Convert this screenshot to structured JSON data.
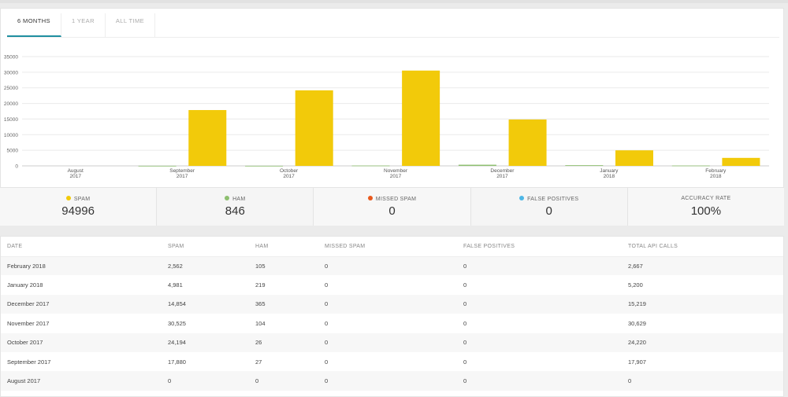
{
  "tabs": [
    {
      "label": "6 MONTHS",
      "active": true
    },
    {
      "label": "1 YEAR",
      "active": false
    },
    {
      "label": "ALL TIME",
      "active": false
    }
  ],
  "chart_data": {
    "type": "bar",
    "categories": [
      "August 2017",
      "September 2017",
      "October 2017",
      "November 2017",
      "December 2017",
      "January 2018",
      "February 2018"
    ],
    "category_lines": [
      [
        "August",
        "2017"
      ],
      [
        "September",
        "2017"
      ],
      [
        "October",
        "2017"
      ],
      [
        "November",
        "2017"
      ],
      [
        "December",
        "2017"
      ],
      [
        "January",
        "2018"
      ],
      [
        "February",
        "2018"
      ]
    ],
    "series": [
      {
        "name": "Ham",
        "color": "#8dbf6f",
        "values": [
          0,
          27,
          26,
          104,
          365,
          219,
          105
        ]
      },
      {
        "name": "Spam",
        "color": "#f2ca0a",
        "values": [
          0,
          17880,
          24194,
          30525,
          14854,
          4981,
          2562
        ]
      }
    ],
    "y_ticks": [
      0,
      5000,
      10000,
      15000,
      20000,
      25000,
      30000,
      35000
    ],
    "ylim": [
      0,
      35000
    ],
    "grid": true
  },
  "stats": [
    {
      "label": "SPAM",
      "value": "94996",
      "dot_color": "#f2ca0a"
    },
    {
      "label": "HAM",
      "value": "846",
      "dot_color": "#8dbf6f"
    },
    {
      "label": "MISSED SPAM",
      "value": "0",
      "dot_color": "#e8591d"
    },
    {
      "label": "FALSE POSITIVES",
      "value": "0",
      "dot_color": "#4db7e6"
    },
    {
      "label": "ACCURACY RATE",
      "value": "100%",
      "dot_color": ""
    }
  ],
  "table": {
    "headers": [
      "DATE",
      "SPAM",
      "HAM",
      "MISSED SPAM",
      "FALSE POSITIVES",
      "TOTAL API CALLS"
    ],
    "rows": [
      [
        "February 2018",
        "2,562",
        "105",
        "0",
        "0",
        "2,667"
      ],
      [
        "January 2018",
        "4,981",
        "219",
        "0",
        "0",
        "5,200"
      ],
      [
        "December 2017",
        "14,854",
        "365",
        "0",
        "0",
        "15,219"
      ],
      [
        "November 2017",
        "30,525",
        "104",
        "0",
        "0",
        "30,629"
      ],
      [
        "October 2017",
        "24,194",
        "26",
        "0",
        "0",
        "24,220"
      ],
      [
        "September 2017",
        "17,880",
        "27",
        "0",
        "0",
        "17,907"
      ],
      [
        "August 2017",
        "0",
        "0",
        "0",
        "0",
        "0"
      ]
    ]
  }
}
